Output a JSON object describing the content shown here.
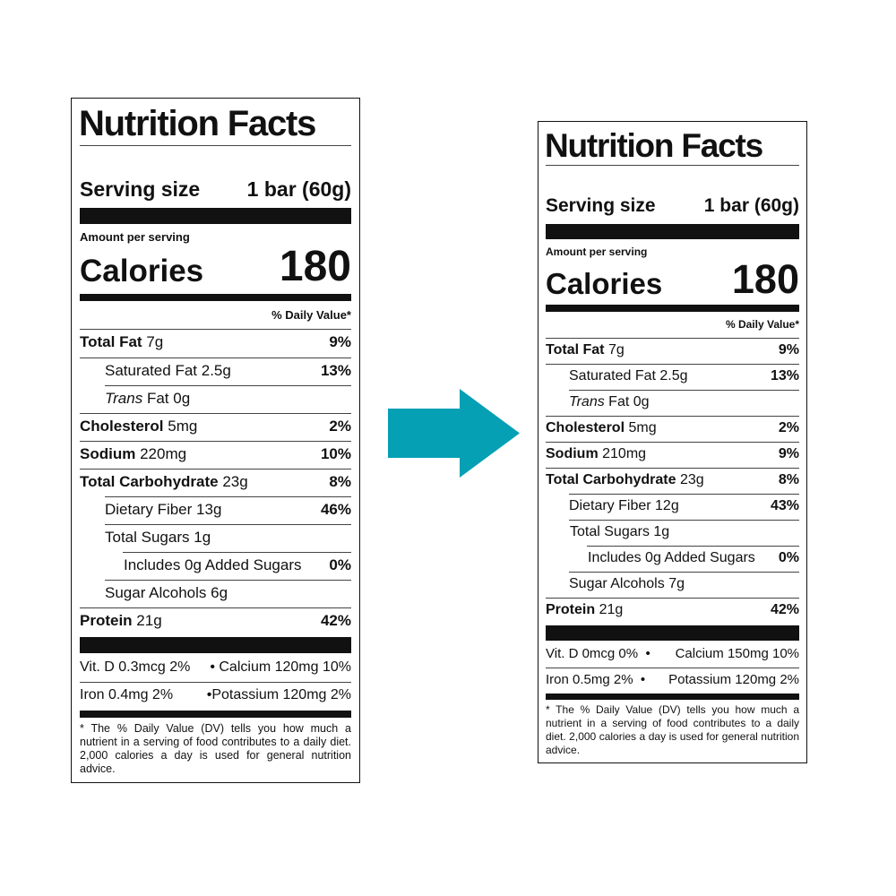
{
  "arrow_color": "#06a0b5",
  "arrow_icon": "right-arrow-icon",
  "labels": [
    {
      "title": "Nutrition Facts",
      "serving_label": "Serving size",
      "serving_value": "1 bar (60g)",
      "amount_per_serving": "Amount per serving",
      "calories_label": "Calories",
      "calories_value": "180",
      "daily_value_header": "% Daily Value*",
      "total_fat": {
        "name": "Total Fat",
        "amount": "7g",
        "dv": "9%"
      },
      "saturated_fat": {
        "name": "Saturated Fat",
        "amount": "2.5g",
        "dv": "13%"
      },
      "trans_fat": {
        "name_italic": "Trans",
        "name_rest": "Fat",
        "amount": "0g"
      },
      "cholesterol": {
        "name": "Cholesterol",
        "amount": "5mg",
        "dv": "2%"
      },
      "sodium": {
        "name": "Sodium",
        "amount": "220mg",
        "dv": "10%"
      },
      "total_carbohydrate": {
        "name": "Total Carbohydrate",
        "amount": "23g",
        "dv": "8%"
      },
      "dietary_fiber": {
        "name": "Dietary Fiber",
        "amount": "13g",
        "dv": "46%"
      },
      "total_sugars": {
        "name": "Total Sugars",
        "amount": "1g"
      },
      "added_sugars": {
        "text": "Includes 0g Added Sugars",
        "dv": "0%"
      },
      "sugar_alcohols": {
        "name": "Sugar Alcohols",
        "amount": "6g"
      },
      "protein": {
        "name": "Protein",
        "amount": "21g",
        "dv": "42%"
      },
      "vitamin_d": "Vit. D 0.3mcg 2%",
      "calcium": "Calcium 120mg 10%",
      "iron": "Iron 0.4mg 2%",
      "potassium": "Potassium 120mg 2%",
      "bullet": "•",
      "footnote": "* The % Daily Value (DV) tells you how much a nutrient in a serving of food contributes to a daily diet. 2,000 calories a day is used for general nutrition advice."
    },
    {
      "title": "Nutrition Facts",
      "serving_label": "Serving size",
      "serving_value": "1 bar (60g)",
      "amount_per_serving": "Amount per serving",
      "calories_label": "Calories",
      "calories_value": "180",
      "daily_value_header": "% Daily Value*",
      "total_fat": {
        "name": "Total Fat",
        "amount": "7g",
        "dv": "9%"
      },
      "saturated_fat": {
        "name": "Saturated Fat",
        "amount": "2.5g",
        "dv": "13%"
      },
      "trans_fat": {
        "name_italic": "Trans",
        "name_rest": "Fat",
        "amount": "0g"
      },
      "cholesterol": {
        "name": "Cholesterol",
        "amount": "5mg",
        "dv": "2%"
      },
      "sodium": {
        "name": "Sodium",
        "amount": "210mg",
        "dv": "9%"
      },
      "total_carbohydrate": {
        "name": "Total Carbohydrate",
        "amount": "23g",
        "dv": "8%"
      },
      "dietary_fiber": {
        "name": "Dietary Fiber",
        "amount": "12g",
        "dv": "43%"
      },
      "total_sugars": {
        "name": "Total Sugars",
        "amount": "1g"
      },
      "added_sugars": {
        "text": "Includes 0g Added Sugars",
        "dv": "0%"
      },
      "sugar_alcohols": {
        "name": "Sugar Alcohols",
        "amount": "7g"
      },
      "protein": {
        "name": "Protein",
        "amount": "21g",
        "dv": "42%"
      },
      "vitamin_d": "Vit. D 0mcg 0%",
      "calcium": "Calcium 150mg 10%",
      "iron": "Iron 0.5mg 2%",
      "potassium": "Potassium 120mg 2%",
      "bullet": "•",
      "footnote": "* The % Daily Value (DV) tells you how much a nutrient in a serving of food contributes to a daily diet. 2,000 calories a day is used for general nutrition advice."
    }
  ]
}
